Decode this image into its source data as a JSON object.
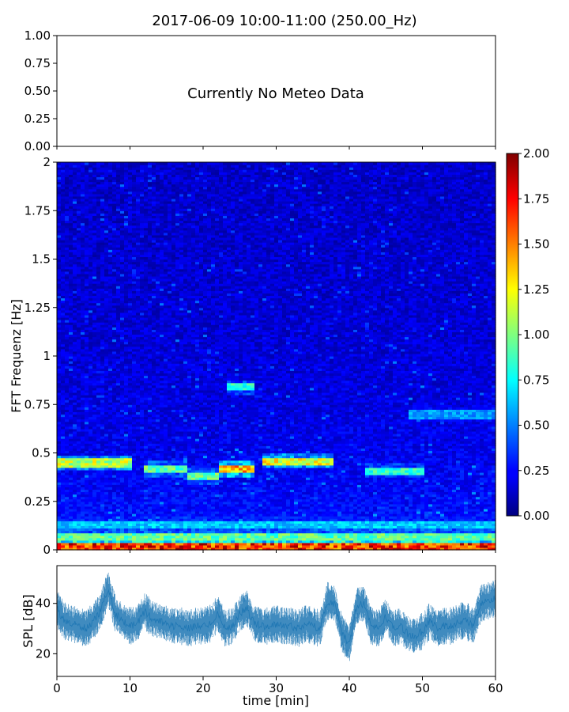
{
  "title": "2017-06-09 10:00-11:00 (250.00_Hz)",
  "chart_data": [
    {
      "type": "line",
      "panel": "meteo",
      "annotation": "Currently No Meteo Data",
      "ylim": [
        0.0,
        1.0
      ],
      "yticks": [
        "0.00",
        "0.25",
        "0.50",
        "0.75",
        "1.00"
      ],
      "xlim": [
        0,
        60
      ],
      "series": []
    },
    {
      "type": "heatmap",
      "panel": "spectrogram",
      "ylabel": "FFT Frequenz [Hz]",
      "xlim": [
        0,
        60
      ],
      "ylim": [
        0,
        2
      ],
      "yticks": [
        "0",
        "0.25",
        "0.5",
        "0.75",
        "1",
        "1.25",
        "1.5",
        "1.75",
        "2"
      ],
      "colormap": "jet",
      "colorbar": {
        "range": [
          0.0,
          2.0
        ],
        "ticks": [
          "0.00",
          "0.25",
          "0.50",
          "0.75",
          "1.00",
          "1.25",
          "1.50",
          "1.75",
          "2.00"
        ]
      },
      "features": [
        {
          "t_start": 0,
          "t_end": 60,
          "freq": 0.02,
          "level": 1.8
        },
        {
          "t_start": 0,
          "t_end": 60,
          "freq": 0.07,
          "level": 1.0
        },
        {
          "t_start": 0,
          "t_end": 60,
          "freq": 0.13,
          "level": 0.7
        },
        {
          "t_start": 0,
          "t_end": 10,
          "freq": 0.45,
          "level": 1.2
        },
        {
          "t_start": 12,
          "t_end": 18,
          "freq": 0.42,
          "level": 1.0
        },
        {
          "t_start": 18,
          "t_end": 22,
          "freq": 0.38,
          "level": 1.0
        },
        {
          "t_start": 22,
          "t_end": 27,
          "freq": 0.42,
          "level": 1.5
        },
        {
          "t_start": 28,
          "t_end": 38,
          "freq": 0.46,
          "level": 1.3
        },
        {
          "t_start": 42,
          "t_end": 50,
          "freq": 0.41,
          "level": 0.9
        },
        {
          "t_start": 23,
          "t_end": 27,
          "freq": 0.84,
          "level": 0.9
        },
        {
          "t_start": 48,
          "t_end": 60,
          "freq": 0.7,
          "level": 0.6
        }
      ]
    },
    {
      "type": "line",
      "panel": "spl",
      "xlabel": "time [min]",
      "ylabel": "SPL [dB]",
      "xlim": [
        0,
        60
      ],
      "ylim": [
        11,
        55
      ],
      "xticks": [
        "0",
        "10",
        "20",
        "30",
        "40",
        "50",
        "60"
      ],
      "yticks": [
        "20",
        "40"
      ],
      "color": "#1f77b4",
      "series": [
        {
          "x": [
            0,
            1,
            2,
            3,
            4,
            5,
            6,
            7,
            8,
            9,
            10,
            11,
            12,
            13,
            14,
            15,
            16,
            17,
            18,
            19,
            20,
            21,
            22,
            23,
            24,
            25,
            26,
            27,
            28,
            29,
            30,
            31,
            32,
            33,
            34,
            35,
            36,
            37,
            38,
            39,
            40,
            41,
            42,
            43,
            44,
            45,
            46,
            47,
            48,
            49,
            50,
            51,
            52,
            53,
            54,
            55,
            56,
            57,
            58,
            59,
            60
          ],
          "y": [
            38,
            33,
            32,
            31,
            30,
            33,
            37,
            46,
            36,
            33,
            31,
            32,
            37,
            34,
            33,
            32,
            31,
            31,
            30,
            31,
            31,
            32,
            36,
            30,
            31,
            36,
            38,
            32,
            31,
            31,
            32,
            31,
            31,
            30,
            32,
            31,
            30,
            41,
            40,
            28,
            24,
            39,
            40,
            31,
            30,
            35,
            30,
            31,
            28,
            27,
            29,
            33,
            30,
            31,
            31,
            33,
            33,
            31,
            40,
            41,
            42
          ]
        }
      ]
    }
  ]
}
